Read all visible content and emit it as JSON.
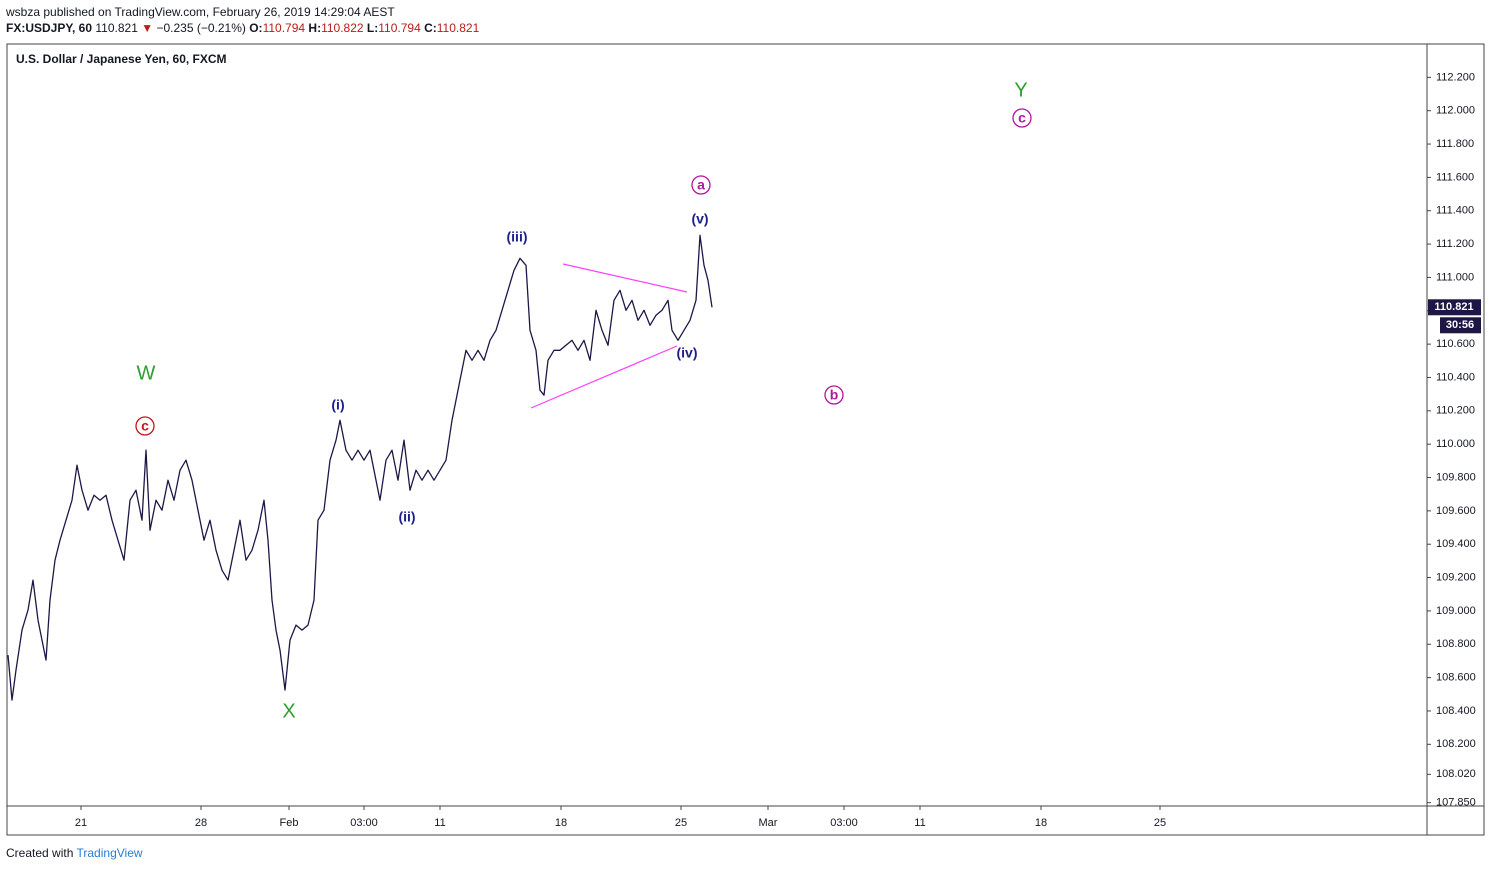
{
  "header": {
    "publisher": "wsbza published on TradingView.com, February 26, 2019 14:29:04 AEST",
    "symbol": "FX:USDJPY, 60",
    "last": "110.821",
    "arrow": "▼",
    "change": "−0.235 (−0.21%)",
    "o_label": "O:",
    "o": "110.794",
    "h_label": "H:",
    "h": "110.822",
    "l_label": "L:",
    "l": "110.794",
    "c_label": "C:",
    "c": "110.821"
  },
  "chart_data": {
    "type": "line",
    "title": "U.S. Dollar / Japanese Yen, 60, FXCM",
    "color": "#1e1746",
    "x": [
      1,
      5,
      9,
      15,
      21,
      26,
      31,
      35,
      39,
      43,
      48,
      53,
      59,
      65,
      70,
      75,
      81,
      87,
      93,
      99,
      105,
      111,
      117,
      123,
      129,
      135,
      139,
      143,
      149,
      155,
      161,
      167,
      173,
      179,
      185,
      191,
      197,
      203,
      209,
      215,
      221,
      227,
      233,
      239,
      245,
      251,
      257,
      261,
      265,
      269,
      273,
      278,
      283,
      289,
      295,
      301,
      307,
      311,
      317,
      323,
      329,
      333,
      339,
      345,
      351,
      357,
      363,
      369,
      373,
      379,
      385,
      391,
      397,
      403,
      409,
      415,
      421,
      427,
      433,
      439,
      445,
      449,
      453,
      459,
      465,
      471,
      477,
      483,
      489,
      495,
      501,
      507,
      513,
      519,
      523,
      529,
      533,
      537,
      541,
      547,
      553,
      559,
      565,
      571,
      577,
      583,
      589,
      595,
      601,
      607,
      613,
      619,
      625,
      631,
      637,
      643,
      649,
      655,
      661,
      665,
      671,
      677,
      683,
      689,
      693,
      697,
      701,
      705
    ],
    "values": [
      108.735,
      108.465,
      108.645,
      108.885,
      109.005,
      109.185,
      108.945,
      108.825,
      108.705,
      109.065,
      109.304,
      109.424,
      109.544,
      109.664,
      109.874,
      109.724,
      109.604,
      109.694,
      109.664,
      109.694,
      109.544,
      109.424,
      109.304,
      109.664,
      109.724,
      109.544,
      109.964,
      109.484,
      109.664,
      109.604,
      109.784,
      109.664,
      109.844,
      109.904,
      109.784,
      109.604,
      109.424,
      109.544,
      109.364,
      109.244,
      109.185,
      109.364,
      109.544,
      109.304,
      109.364,
      109.484,
      109.664,
      109.424,
      109.065,
      108.885,
      108.765,
      108.525,
      108.825,
      108.915,
      108.885,
      108.915,
      109.065,
      109.544,
      109.604,
      109.904,
      110.024,
      110.144,
      109.964,
      109.904,
      109.964,
      109.904,
      109.964,
      109.784,
      109.664,
      109.904,
      109.964,
      109.784,
      110.024,
      109.724,
      109.844,
      109.784,
      109.844,
      109.784,
      109.844,
      109.904,
      110.144,
      110.264,
      110.384,
      110.563,
      110.503,
      110.563,
      110.503,
      110.623,
      110.683,
      110.803,
      110.923,
      111.043,
      111.115,
      111.073,
      110.683,
      110.563,
      110.324,
      110.294,
      110.503,
      110.563,
      110.563,
      110.593,
      110.623,
      110.563,
      110.623,
      110.503,
      110.803,
      110.683,
      110.593,
      110.863,
      110.923,
      110.803,
      110.863,
      110.743,
      110.803,
      110.713,
      110.773,
      110.803,
      110.863,
      110.683,
      110.623,
      110.683,
      110.743,
      110.863,
      111.253,
      111.073,
      110.983,
      110.821
    ],
    "xlim": [
      0,
      1420
    ],
    "xticks": [
      {
        "value": 74,
        "label": "21"
      },
      {
        "value": 194,
        "label": "28"
      },
      {
        "value": 282,
        "label": "Feb"
      },
      {
        "value": 357,
        "label": "03:00"
      },
      {
        "value": 433,
        "label": "11"
      },
      {
        "value": 554,
        "label": "18"
      },
      {
        "value": 674,
        "label": "25"
      },
      {
        "value": 761,
        "label": "Mar"
      },
      {
        "value": 837,
        "label": "03:00"
      },
      {
        "value": 913,
        "label": "11"
      },
      {
        "value": 1034,
        "label": "18"
      },
      {
        "value": 1153,
        "label": "25"
      }
    ],
    "ylim": [
      107.83,
      112.4
    ],
    "yticks": [
      {
        "value": 107.85,
        "label": "107.850"
      },
      {
        "value": 108.02,
        "label": "108.020"
      },
      {
        "value": 108.2,
        "label": "108.200"
      },
      {
        "value": 108.4,
        "label": "108.400"
      },
      {
        "value": 108.6,
        "label": "108.600"
      },
      {
        "value": 108.8,
        "label": "108.800"
      },
      {
        "value": 109.0,
        "label": "109.000"
      },
      {
        "value": 109.2,
        "label": "109.200"
      },
      {
        "value": 109.4,
        "label": "109.400"
      },
      {
        "value": 109.6,
        "label": "109.600"
      },
      {
        "value": 109.8,
        "label": "109.800"
      },
      {
        "value": 110.0,
        "label": "110.000"
      },
      {
        "value": 110.2,
        "label": "110.200"
      },
      {
        "value": 110.4,
        "label": "110.400"
      },
      {
        "value": 110.6,
        "label": "110.600"
      },
      {
        "value": 110.8,
        "label": "110.800"
      },
      {
        "value": 111.0,
        "label": "111.000"
      },
      {
        "value": 111.2,
        "label": "111.200"
      },
      {
        "value": 111.4,
        "label": "111.400"
      },
      {
        "value": 111.6,
        "label": "111.600"
      },
      {
        "value": 111.8,
        "label": "111.800"
      },
      {
        "value": 112.0,
        "label": "112.000"
      },
      {
        "value": 112.2,
        "label": "112.200"
      }
    ],
    "grid": false,
    "price_label": "110.821",
    "countdown": "30:56",
    "annotations": [
      {
        "text": "W",
        "color": "#2e9e2e"
      },
      {
        "text": "c",
        "color": "#c0161c",
        "circled": true
      },
      {
        "text": "X",
        "color": "#2e9e2e"
      },
      {
        "text": "(i)",
        "color": "#1c1f8a"
      },
      {
        "text": "(ii)",
        "color": "#1c1f8a"
      },
      {
        "text": "(iii)",
        "color": "#1c1f8a"
      },
      {
        "text": "(iv)",
        "color": "#1c1f8a"
      },
      {
        "text": "(v)",
        "color": "#1c1f8a"
      },
      {
        "text": "a",
        "color": "#b0179e",
        "circled": true
      },
      {
        "text": "b",
        "color": "#b0179e",
        "circled": true
      },
      {
        "text": "Y",
        "color": "#2e9e2e"
      },
      {
        "text": "c",
        "color": "#b0179e",
        "circled": true
      }
    ]
  },
  "footer": {
    "created": "Created with",
    "brand": "TradingView"
  }
}
